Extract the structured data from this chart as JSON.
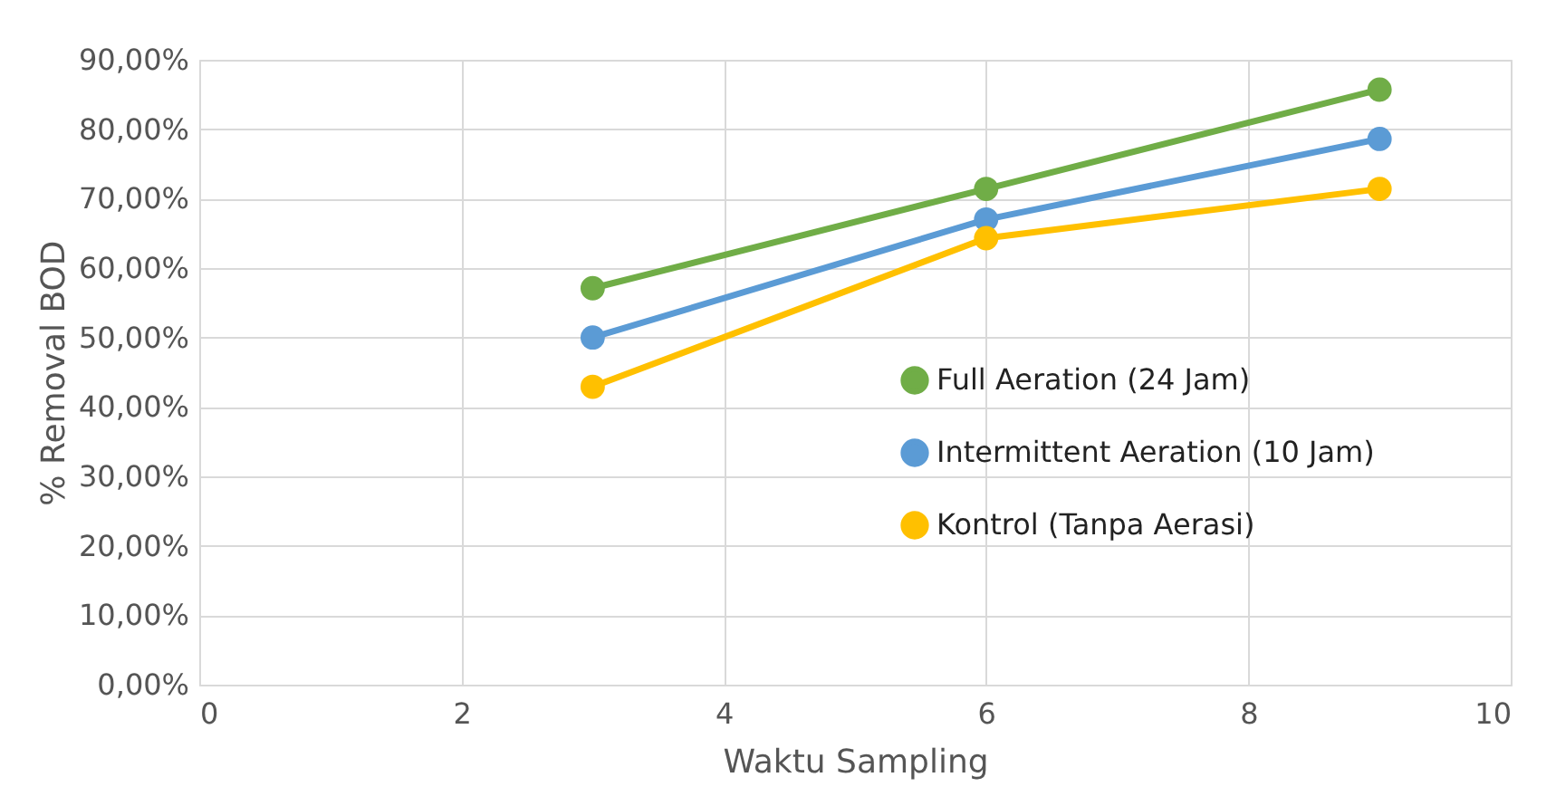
{
  "chart_data": {
    "type": "line",
    "xlabel": "Waktu Sampling",
    "ylabel": "% Removal BOD",
    "x": [
      3,
      6,
      9
    ],
    "series": [
      {
        "name": "Full Aeration (24 Jam)",
        "color": "#70ad47",
        "values": [
          57.1,
          71.4,
          85.7
        ]
      },
      {
        "name": "Intermittent Aeration (10 Jam)",
        "color": "#5b9bd5",
        "values": [
          50.0,
          67.0,
          78.6
        ]
      },
      {
        "name": "Kontrol (Tanpa Aerasi)",
        "color": "#ffc000",
        "values": [
          42.9,
          64.3,
          71.4
        ]
      }
    ],
    "xlim": [
      0,
      10
    ],
    "xticks": [
      0,
      2,
      4,
      6,
      8,
      10
    ],
    "ylim": [
      0,
      90
    ],
    "yticks": [
      {
        "value": 0,
        "label": "0,00%"
      },
      {
        "value": 10,
        "label": "10,00%"
      },
      {
        "value": 20,
        "label": "20,00%"
      },
      {
        "value": 30,
        "label": "30,00%"
      },
      {
        "value": 40,
        "label": "40,00%"
      },
      {
        "value": 50,
        "label": "50,00%"
      },
      {
        "value": 60,
        "label": "60,00%"
      },
      {
        "value": 70,
        "label": "70,00%"
      },
      {
        "value": 80,
        "label": "80,00%"
      },
      {
        "value": 90,
        "label": "90,00%"
      }
    ],
    "grid": true,
    "legend": "bottom right",
    "marker": "circle",
    "line_style": "solid"
  }
}
